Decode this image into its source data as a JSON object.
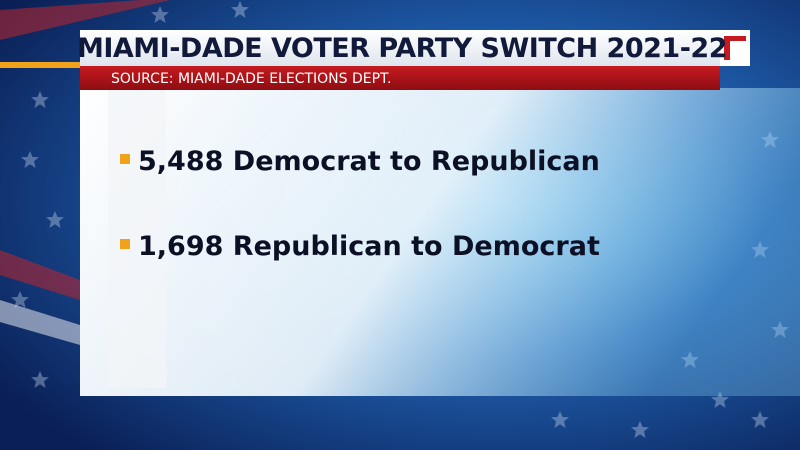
{
  "header": {
    "title": "MIAMI-DADE VOTER PARTY SWITCH 2021-22",
    "source": "SOURCE: MIAMI-DADE ELECTIONS DEPT."
  },
  "items": [
    "5,488 Democrat to Republican",
    "1,698 Republican to Democrat"
  ]
}
